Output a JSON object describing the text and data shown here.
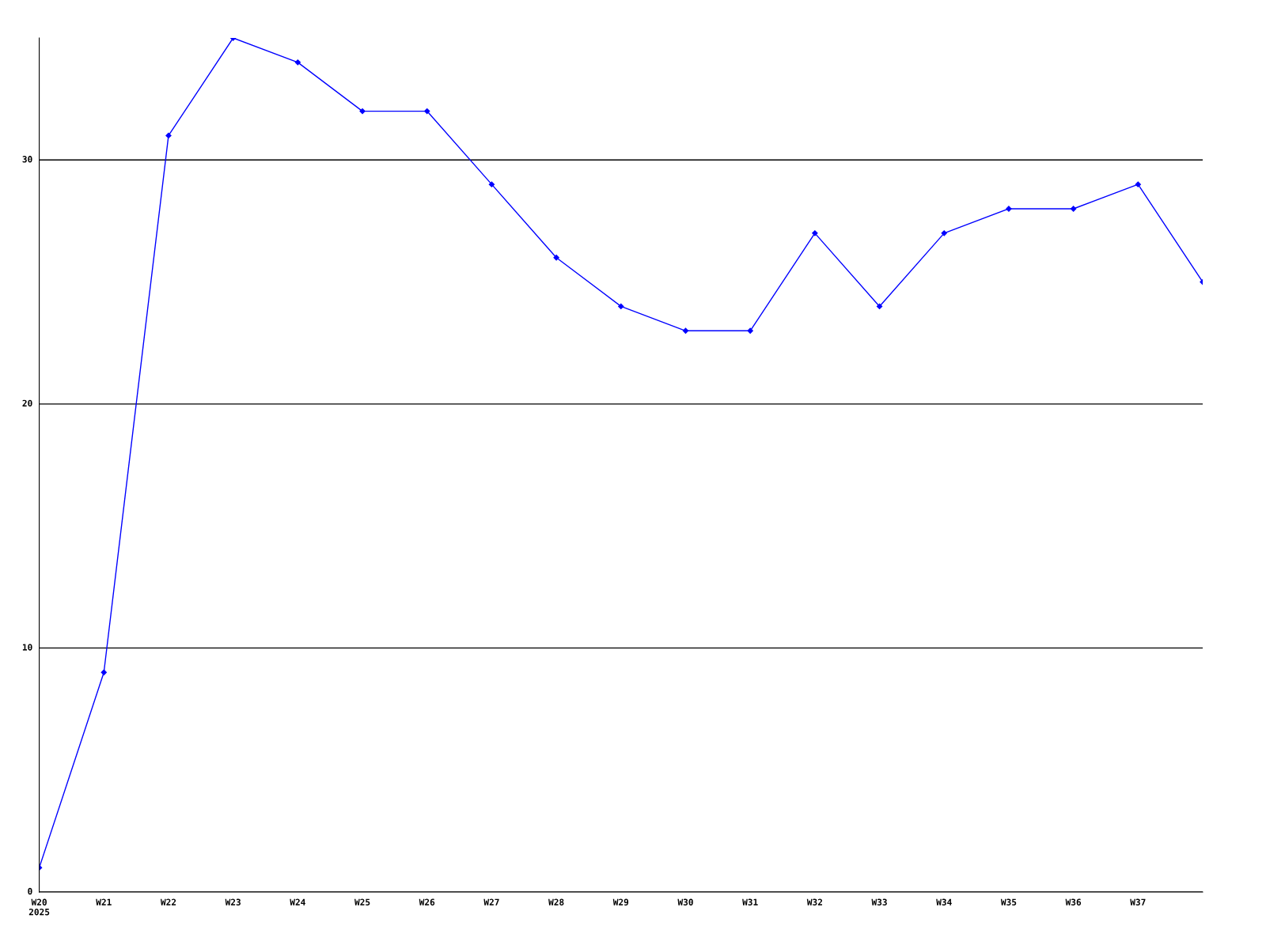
{
  "chart_data": {
    "type": "line",
    "categories": [
      "W20\n2025",
      "W21",
      "W22",
      "W23",
      "W24",
      "W25",
      "W26",
      "W27",
      "W28",
      "W29",
      "W30",
      "W31",
      "W32",
      "W33",
      "W34",
      "W35",
      "W36",
      "W37",
      null
    ],
    "series": [
      {
        "color": "#0000ff",
        "values": [
          1,
          9,
          31,
          35,
          34,
          32,
          32,
          29,
          26,
          24,
          23,
          23,
          27,
          24,
          27,
          28,
          28,
          29,
          25
        ]
      }
    ],
    "ylim": [
      0,
      35
    ],
    "yticks": [
      0,
      10,
      20,
      30
    ],
    "grid": "y",
    "marker": "diamond",
    "line_style": "solid",
    "legend": false
  }
}
